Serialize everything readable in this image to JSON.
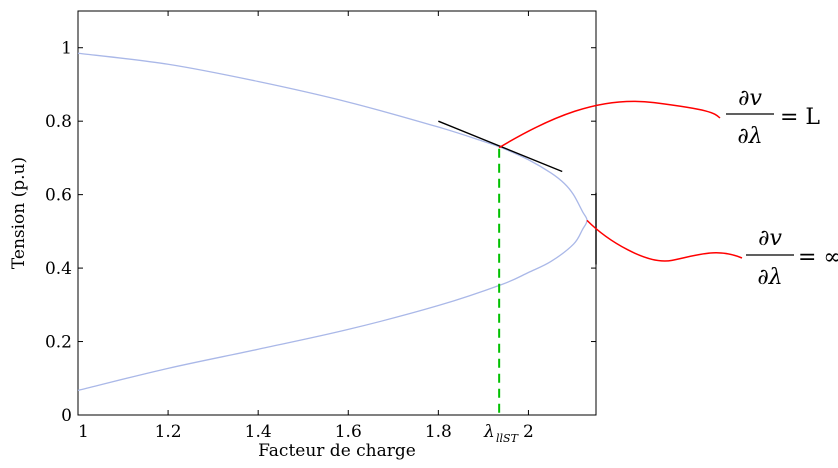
{
  "chart_data": {
    "type": "line",
    "title": "",
    "xlabel": "Facteur de charge",
    "ylabel": "Tension (p.u)",
    "xlim": [
      1,
      2.15
    ],
    "ylim": [
      0,
      1.1
    ],
    "grid": false,
    "x_ticks": [
      1,
      1.2,
      1.4,
      1.6,
      1.8,
      2
    ],
    "x_tick_labels": [
      "1",
      "1.2",
      "1.4",
      "1.6",
      "1.8",
      "2"
    ],
    "y_ticks": [
      0,
      0.2,
      0.4,
      0.6,
      0.8,
      1
    ],
    "y_tick_labels": [
      "0",
      "0.2",
      "0.4",
      "0.6",
      "0.8",
      "1"
    ],
    "series": [
      {
        "values_upper": [
          [
            1.0,
            0.985
          ],
          [
            1.2,
            0.955
          ],
          [
            1.4,
            0.908
          ],
          [
            1.6,
            0.852
          ],
          [
            1.8,
            0.784
          ],
          [
            1.9,
            0.745
          ],
          [
            1.94,
            0.728
          ],
          [
            2.0,
            0.695
          ],
          [
            2.05,
            0.659
          ],
          [
            2.08,
            0.63
          ],
          [
            2.1,
            0.6
          ],
          [
            2.12,
            0.554
          ],
          [
            2.13,
            0.53
          ]
        ],
        "values_lower": [
          [
            2.13,
            0.53
          ],
          [
            2.12,
            0.505
          ],
          [
            2.1,
            0.465
          ],
          [
            2.05,
            0.418
          ],
          [
            2.0,
            0.388
          ],
          [
            1.94,
            0.355
          ],
          [
            1.8,
            0.298
          ],
          [
            1.6,
            0.233
          ],
          [
            1.4,
            0.179
          ],
          [
            1.2,
            0.127
          ],
          [
            1.0,
            0.067
          ]
        ],
        "color": "#aab8e8"
      }
    ],
    "lambda_marker": {
      "x": 1.935,
      "label": "λ",
      "subscript": "llST",
      "color": "#00c000"
    },
    "tangent_lines": [
      {
        "from": [
          1.8,
          0.8
        ],
        "to": [
          2.075,
          0.663
        ],
        "color": "#000000"
      },
      {
        "from": [
          2.15,
          0.605
        ],
        "to": [
          2.15,
          0.41
        ],
        "color": "#000000"
      }
    ],
    "annotations": [
      {
        "numerator": "∂v",
        "denominator": "∂λ",
        "rhs": "= L",
        "color": "#ff0000"
      },
      {
        "numerator": "∂v",
        "denominator": "∂λ",
        "rhs": "= ∞",
        "color": "#ff0000"
      }
    ]
  }
}
